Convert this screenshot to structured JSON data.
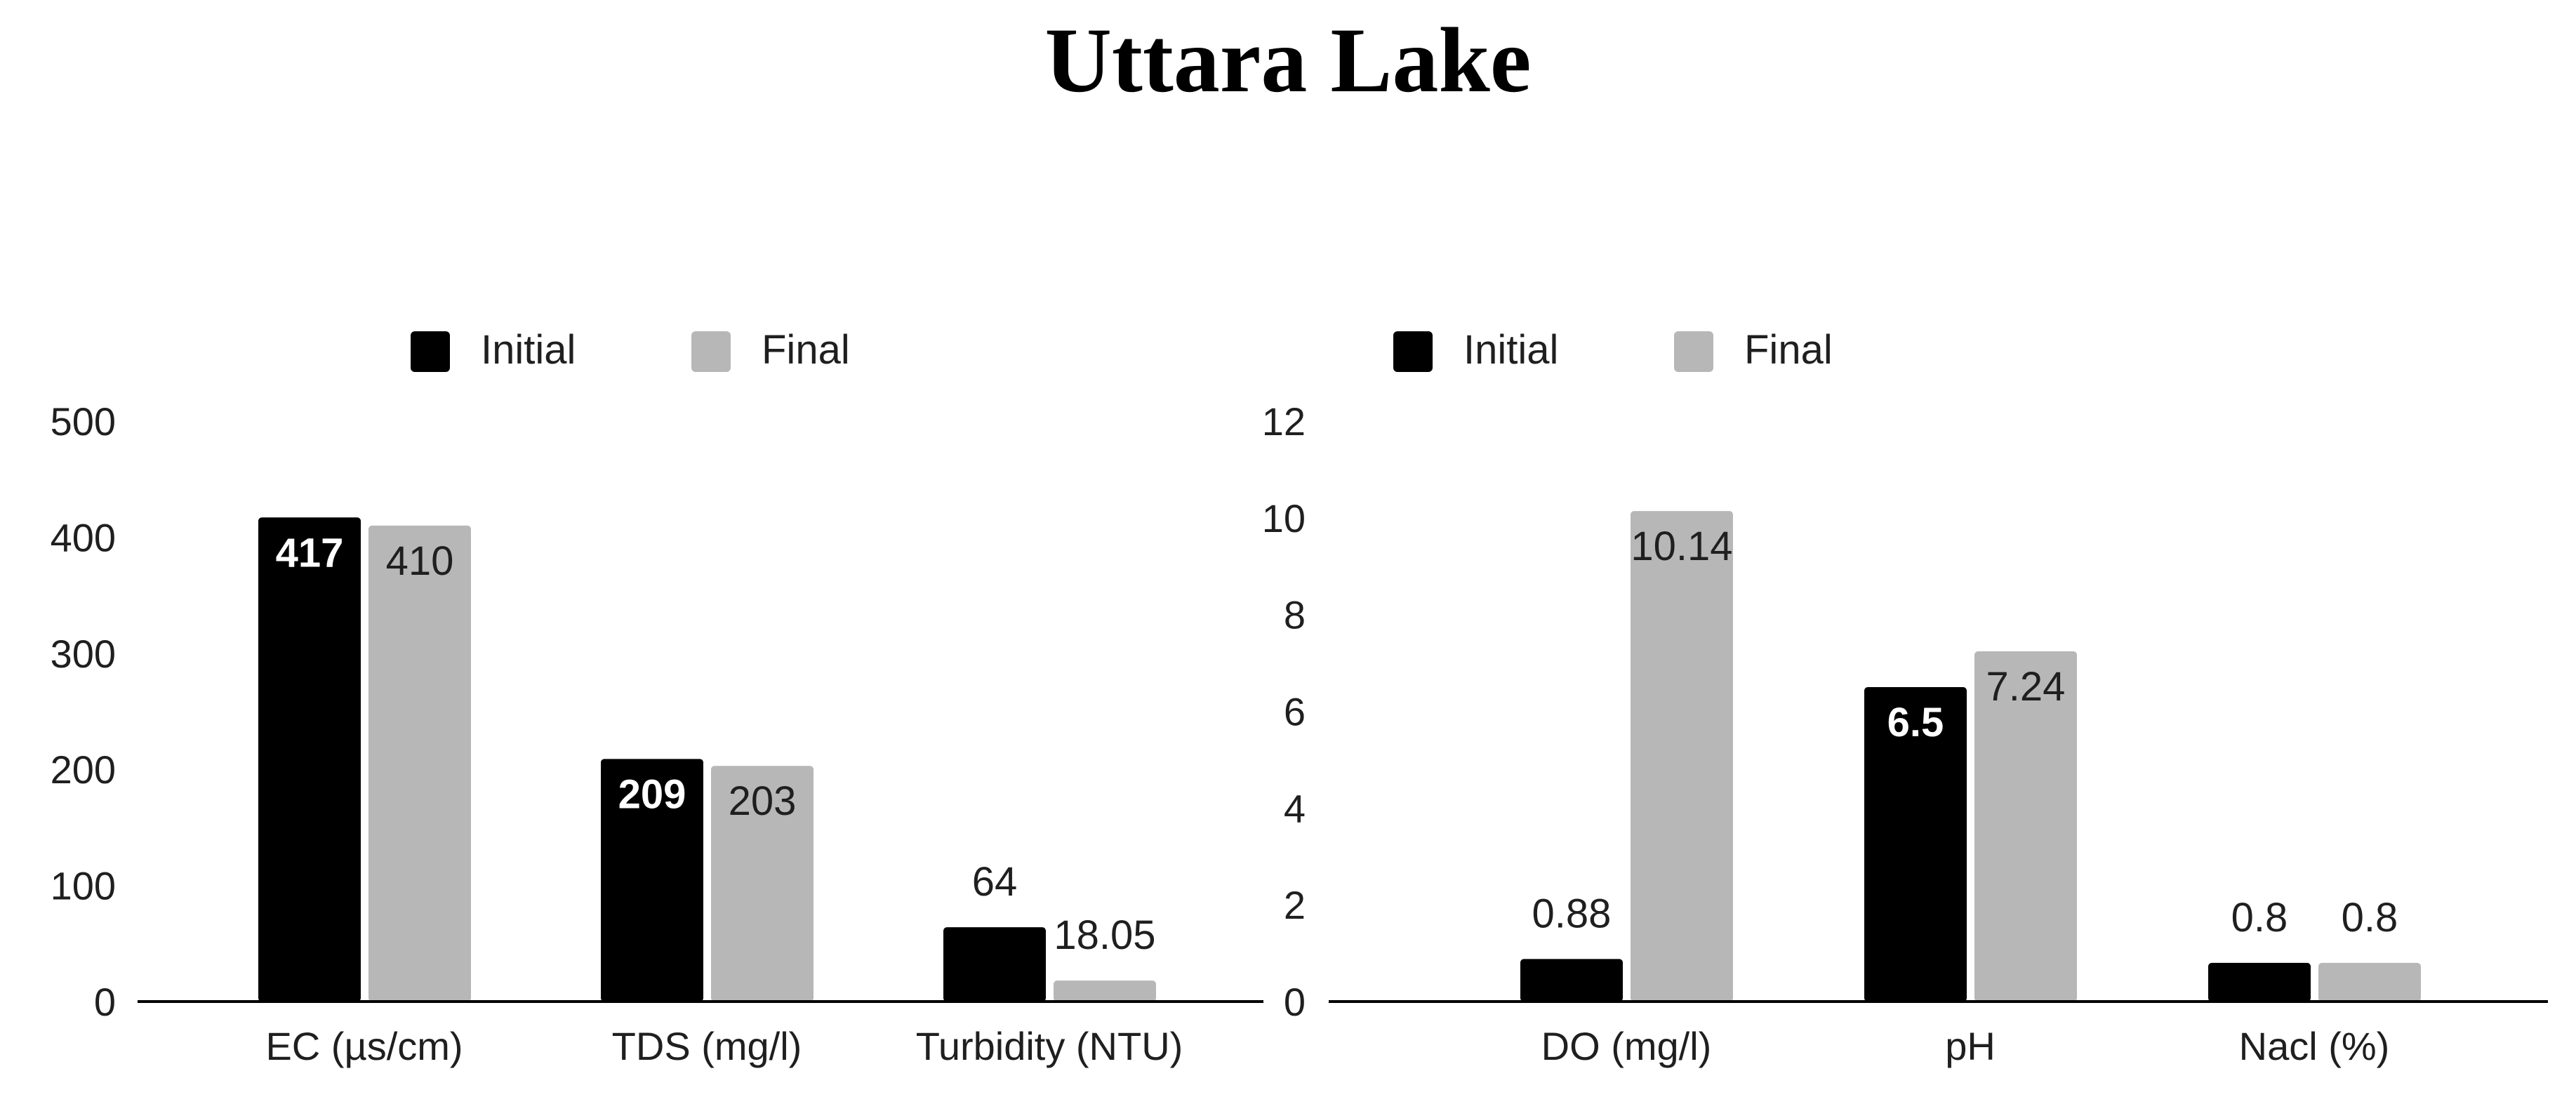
{
  "title": "Uttara Lake",
  "colors": {
    "initial": "#000000",
    "final": "#b7b7b7",
    "axis": "#000000",
    "tick_text": "#1f1f1f",
    "label_inside": "#ffffff",
    "label_outside": "#1f1f1f"
  },
  "chart_data": [
    {
      "type": "bar",
      "categories": [
        "EC (µs/cm)",
        "TDS (mg/l)",
        "Turbidity (NTU)"
      ],
      "series": [
        {
          "name": "Initial",
          "values": [
            417,
            209,
            64
          ],
          "labels": [
            "417",
            "209",
            "64"
          ]
        },
        {
          "name": "Final",
          "values": [
            410,
            203,
            18.05
          ],
          "labels": [
            "410",
            "203",
            "18.05"
          ]
        }
      ],
      "ylim": [
        0,
        500
      ],
      "yticks": [
        0,
        100,
        200,
        300,
        400,
        500
      ],
      "ytick_labels": [
        "0",
        "100",
        "200",
        "300",
        "400",
        "500"
      ],
      "grid": false,
      "legend": "top-center",
      "xlabel": "",
      "ylabel": ""
    },
    {
      "type": "bar",
      "categories": [
        "DO (mg/l)",
        "pH",
        "Nacl (%)"
      ],
      "series": [
        {
          "name": "Initial",
          "values": [
            0.88,
            6.5,
            0.8
          ],
          "labels": [
            "0.88",
            "6.5",
            "0.8"
          ]
        },
        {
          "name": "Final",
          "values": [
            10.14,
            7.24,
            0.8
          ],
          "labels": [
            "10.14",
            "7.24",
            "0.8"
          ]
        }
      ],
      "ylim": [
        0,
        12
      ],
      "yticks": [
        0,
        2,
        4,
        6,
        8,
        10,
        12
      ],
      "ytick_labels": [
        "0",
        "2",
        "4",
        "6",
        "8",
        "10",
        "12"
      ],
      "grid": false,
      "legend": "top-center",
      "xlabel": "",
      "ylabel": ""
    }
  ]
}
